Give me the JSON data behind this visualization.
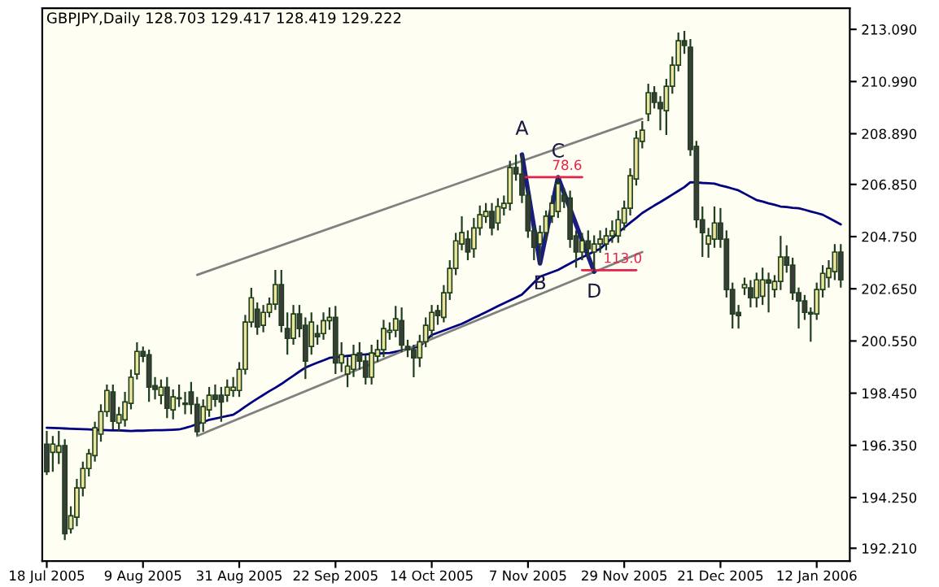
{
  "chart_data": {
    "type": "candlestick",
    "title": "GBPJPY,Daily 128.703 129.417 128.419 129.222",
    "categories": [
      "18 Jul 2005",
      null,
      null,
      null,
      null,
      null,
      null,
      null,
      null,
      null,
      null,
      null,
      null,
      null,
      null,
      null,
      "9 Aug 2005",
      null,
      null,
      null,
      null,
      null,
      null,
      null,
      null,
      null,
      null,
      null,
      null,
      null,
      null,
      null,
      "31 Aug 2005",
      null,
      null,
      null,
      null,
      null,
      null,
      null,
      null,
      null,
      null,
      null,
      null,
      null,
      null,
      null,
      "22 Sep 2005",
      null,
      null,
      null,
      null,
      null,
      null,
      null,
      null,
      null,
      null,
      null,
      null,
      null,
      null,
      null,
      "14 Oct 2005",
      null,
      null,
      null,
      null,
      null,
      null,
      null,
      null,
      null,
      null,
      null,
      null,
      null,
      null,
      null,
      "7 Nov 2005",
      null,
      null,
      null,
      null,
      null,
      null,
      null,
      null,
      null,
      null,
      null,
      null,
      null,
      null,
      null,
      "29 Nov 2005",
      null,
      null,
      null,
      null,
      null,
      null,
      null,
      null,
      null,
      null,
      null,
      null,
      null,
      null,
      null,
      "21 Dec 2005",
      null,
      null,
      null,
      null,
      null,
      null,
      null,
      null,
      null,
      null,
      null,
      null,
      null,
      null,
      null,
      "12 Jan 2006",
      null,
      null,
      null,
      null
    ],
    "ohlc": [
      [
        196.4,
        196.93,
        195.16,
        195.29
      ],
      [
        196.07,
        196.73,
        195.29,
        196.4
      ],
      [
        196.07,
        196.93,
        195.6,
        196.33
      ],
      [
        196.34,
        196.6,
        192.54,
        192.8
      ],
      [
        192.99,
        193.9,
        192.8,
        193.52
      ],
      [
        193.46,
        195.0,
        193.1,
        194.64
      ],
      [
        194.64,
        195.7,
        194.3,
        195.42
      ],
      [
        195.42,
        196.2,
        195.1,
        196.01
      ],
      [
        195.94,
        197.3,
        195.7,
        197.06
      ],
      [
        196.8,
        198.0,
        196.5,
        197.71
      ],
      [
        197.71,
        198.8,
        197.5,
        198.56
      ],
      [
        198.5,
        198.8,
        197.0,
        197.32
      ],
      [
        197.25,
        197.9,
        196.9,
        197.58
      ],
      [
        197.38,
        198.5,
        197.1,
        198.1
      ],
      [
        198.04,
        199.4,
        197.8,
        199.09
      ],
      [
        199.22,
        200.5,
        199.0,
        200.13
      ],
      [
        200.13,
        200.33,
        199.7,
        199.94
      ],
      [
        200.0,
        200.2,
        198.1,
        198.69
      ],
      [
        198.75,
        199.1,
        198.2,
        198.6
      ],
      [
        198.37,
        199.0,
        198.0,
        198.69
      ],
      [
        198.69,
        199.1,
        197.45,
        197.84
      ],
      [
        197.78,
        198.6,
        197.4,
        198.3
      ],
      [
        198.23,
        198.8,
        197.9,
        198.26
      ],
      [
        198.0,
        198.5,
        197.6,
        198.05
      ],
      [
        198.5,
        198.9,
        197.6,
        198.0
      ],
      [
        198.0,
        198.3,
        196.75,
        196.9
      ],
      [
        197.25,
        198.2,
        196.9,
        197.91
      ],
      [
        197.78,
        198.7,
        197.5,
        198.37
      ],
      [
        198.37,
        198.8,
        197.9,
        198.2
      ],
      [
        198.37,
        198.7,
        197.3,
        198.1
      ],
      [
        198.37,
        199.0,
        198.1,
        198.69
      ],
      [
        198.56,
        199.1,
        198.3,
        198.69
      ],
      [
        198.56,
        199.7,
        198.3,
        199.41
      ],
      [
        199.41,
        201.6,
        199.2,
        201.31
      ],
      [
        201.31,
        202.69,
        201.1,
        202.29
      ],
      [
        201.83,
        202.1,
        200.8,
        201.11
      ],
      [
        201.18,
        202.0,
        200.9,
        201.7
      ],
      [
        201.7,
        202.3,
        201.5,
        202.03
      ],
      [
        202.03,
        203.41,
        201.8,
        202.82
      ],
      [
        202.82,
        203.41,
        200.9,
        201.18
      ],
      [
        201.05,
        201.7,
        200.0,
        200.66
      ],
      [
        200.66,
        202.0,
        200.4,
        201.64
      ],
      [
        201.64,
        202.0,
        200.7,
        201.05
      ],
      [
        201.18,
        201.5,
        199.02,
        199.74
      ],
      [
        200.33,
        201.7,
        200.0,
        201.31
      ],
      [
        200.85,
        201.2,
        200.4,
        200.72
      ],
      [
        200.85,
        201.7,
        200.6,
        201.37
      ],
      [
        201.37,
        201.9,
        201.0,
        201.5
      ],
      [
        201.5,
        201.96,
        199.22,
        199.67
      ],
      [
        199.67,
        200.5,
        199.3,
        200.0
      ],
      [
        199.22,
        199.9,
        198.69,
        199.54
      ],
      [
        199.41,
        200.4,
        199.1,
        200.0
      ],
      [
        200.07,
        200.5,
        199.4,
        199.74
      ],
      [
        199.74,
        200.0,
        198.8,
        199.09
      ],
      [
        199.09,
        200.4,
        198.8,
        200.07
      ],
      [
        199.94,
        200.6,
        199.7,
        200.2
      ],
      [
        200.2,
        201.4,
        199.9,
        201.05
      ],
      [
        200.9,
        201.3,
        200.6,
        200.98
      ],
      [
        200.98,
        201.96,
        200.7,
        201.44
      ],
      [
        201.37,
        201.9,
        200.1,
        200.39
      ],
      [
        200.33,
        200.6,
        199.9,
        200.2
      ],
      [
        200.2,
        200.4,
        199.09,
        199.87
      ],
      [
        199.87,
        200.8,
        199.5,
        200.52
      ],
      [
        200.52,
        201.5,
        200.3,
        201.18
      ],
      [
        200.98,
        202.0,
        200.7,
        201.7
      ],
      [
        201.77,
        202.0,
        201.2,
        201.57
      ],
      [
        201.5,
        202.8,
        201.3,
        202.49
      ],
      [
        202.49,
        203.8,
        202.2,
        203.47
      ],
      [
        203.47,
        204.9,
        203.2,
        204.58
      ],
      [
        204.45,
        205.57,
        204.2,
        204.91
      ],
      [
        204.65,
        205.0,
        203.8,
        204.13
      ],
      [
        204.26,
        205.5,
        203.9,
        205.1
      ],
      [
        205.1,
        206.0,
        204.8,
        205.63
      ],
      [
        205.56,
        206.1,
        205.3,
        205.76
      ],
      [
        205.76,
        206.1,
        204.8,
        205.1
      ],
      [
        205.3,
        206.3,
        205.0,
        205.96
      ],
      [
        205.9,
        206.4,
        205.6,
        206.09
      ],
      [
        206.09,
        207.8,
        205.8,
        207.53
      ],
      [
        207.53,
        208.05,
        207.0,
        207.27
      ],
      [
        207.27,
        208.05,
        206.1,
        206.42
      ],
      [
        206.42,
        206.7,
        204.7,
        204.98
      ],
      [
        204.98,
        205.2,
        203.8,
        204.32
      ],
      [
        204.45,
        205.2,
        203.67,
        204.91
      ],
      [
        204.91,
        205.8,
        204.6,
        205.57
      ],
      [
        205.57,
        206.4,
        205.3,
        206.09
      ],
      [
        205.76,
        207.14,
        205.5,
        206.88
      ],
      [
        206.42,
        206.7,
        205.9,
        206.17
      ],
      [
        206.3,
        206.6,
        204.3,
        204.65
      ],
      [
        204.78,
        205.0,
        203.5,
        204.13
      ],
      [
        204.13,
        204.9,
        203.8,
        204.58
      ],
      [
        204.58,
        205.0,
        203.9,
        204.26
      ],
      [
        204.13,
        204.8,
        203.34,
        204.45
      ],
      [
        204.45,
        205.0,
        204.1,
        204.65
      ],
      [
        204.45,
        205.1,
        204.2,
        204.78
      ],
      [
        204.78,
        205.4,
        204.5,
        204.98
      ],
      [
        204.78,
        205.8,
        204.5,
        205.43
      ],
      [
        205.3,
        206.2,
        205.0,
        205.89
      ],
      [
        205.89,
        207.5,
        205.6,
        207.2
      ],
      [
        207.07,
        209.0,
        206.8,
        208.71
      ],
      [
        208.58,
        209.4,
        208.3,
        209.03
      ],
      [
        209.69,
        210.9,
        209.4,
        210.54
      ],
      [
        210.54,
        210.8,
        209.9,
        210.15
      ],
      [
        210.15,
        210.4,
        209.03,
        209.9
      ],
      [
        209.82,
        211.1,
        208.84,
        210.8
      ],
      [
        210.8,
        212.0,
        210.5,
        211.65
      ],
      [
        211.65,
        212.96,
        211.4,
        212.63
      ],
      [
        212.63,
        213.03,
        212.1,
        212.44
      ],
      [
        212.37,
        212.7,
        208.0,
        208.25
      ],
      [
        208.38,
        208.6,
        205.1,
        205.43
      ],
      [
        205.43,
        205.96,
        203.93,
        204.91
      ],
      [
        204.45,
        205.1,
        203.9,
        204.78
      ],
      [
        204.65,
        205.96,
        204.3,
        205.3
      ],
      [
        205.3,
        205.9,
        204.3,
        204.65
      ],
      [
        204.65,
        205.0,
        202.3,
        202.62
      ],
      [
        202.62,
        202.9,
        201.05,
        201.64
      ],
      [
        201.7,
        202.0,
        201.05,
        201.57
      ],
      [
        202.69,
        203.1,
        202.4,
        202.82
      ],
      [
        202.69,
        203.0,
        201.9,
        202.29
      ],
      [
        202.29,
        203.3,
        201.9,
        203.01
      ],
      [
        202.35,
        203.5,
        202.0,
        203.01
      ],
      [
        203.01,
        203.3,
        201.7,
        202.88
      ],
      [
        202.62,
        203.2,
        202.3,
        202.95
      ],
      [
        202.95,
        204.78,
        202.6,
        203.93
      ],
      [
        203.93,
        204.4,
        203.3,
        203.6
      ],
      [
        203.6,
        203.9,
        202.2,
        202.49
      ],
      [
        202.49,
        202.7,
        201.05,
        202.16
      ],
      [
        202.16,
        202.4,
        201.4,
        201.7
      ],
      [
        201.7,
        201.9,
        200.52,
        201.64
      ],
      [
        201.64,
        202.9,
        201.4,
        202.62
      ],
      [
        202.62,
        203.6,
        202.3,
        203.27
      ],
      [
        203.1,
        203.8,
        202.7,
        203.47
      ],
      [
        203.34,
        204.45,
        203.0,
        204.13
      ],
      [
        204.13,
        204.45,
        202.7,
        203.01
      ]
    ],
    "series": [
      {
        "type": "line",
        "color": "#000080",
        "values": [
          197.06,
          197.05,
          197.04,
          197.03,
          197.02,
          197.01,
          197.0,
          196.99,
          196.98,
          196.97,
          196.96,
          196.95,
          196.95,
          196.94,
          196.93,
          196.94,
          196.94,
          196.95,
          196.96,
          196.96,
          196.97,
          196.98,
          196.99,
          197.05,
          197.12,
          197.21,
          197.29,
          197.38,
          197.43,
          197.48,
          197.53,
          197.58,
          197.74,
          197.91,
          198.07,
          198.23,
          198.38,
          198.53,
          198.67,
          198.82,
          198.99,
          199.15,
          199.32,
          199.48,
          199.58,
          199.68,
          199.77,
          199.87,
          199.9,
          199.92,
          199.95,
          199.97,
          200.0,
          200.01,
          200.03,
          200.04,
          200.06,
          200.07,
          200.12,
          200.17,
          200.23,
          200.28,
          200.33,
          200.56,
          200.79,
          200.88,
          200.97,
          201.06,
          201.15,
          201.24,
          201.36,
          201.48,
          201.59,
          201.71,
          201.83,
          201.95,
          202.07,
          202.18,
          202.3,
          202.42,
          202.66,
          202.9,
          203.14,
          203.23,
          203.32,
          203.41,
          203.54,
          203.67,
          203.8,
          203.92,
          204.03,
          204.15,
          204.26,
          204.48,
          204.69,
          204.91,
          205.11,
          205.31,
          205.5,
          205.7,
          205.85,
          206.0,
          206.14,
          206.29,
          206.44,
          206.59,
          206.74,
          206.94,
          206.93,
          206.91,
          206.9,
          206.88,
          206.81,
          206.75,
          206.68,
          206.61,
          206.48,
          206.35,
          206.22,
          206.16,
          206.09,
          206.03,
          205.96,
          205.94,
          205.91,
          205.89,
          205.83,
          205.76,
          205.7,
          205.63,
          205.5,
          205.37,
          205.24
        ]
      },
      {
        "type": "line",
        "color": "#808080",
        "values": [
          null,
          null,
          null,
          null,
          null,
          null,
          null,
          null,
          null,
          null,
          null,
          null,
          null,
          null,
          null,
          null,
          null,
          null,
          null,
          null,
          null,
          null,
          null,
          null,
          null,
          203.21,
          null,
          null,
          null,
          null,
          null,
          null,
          null,
          null,
          null,
          null,
          null,
          null,
          null,
          null,
          null,
          null,
          null,
          null,
          null,
          null,
          null,
          null,
          null,
          null,
          null,
          null,
          null,
          null,
          null,
          null,
          null,
          null,
          null,
          null,
          null,
          null,
          null,
          null,
          null,
          null,
          null,
          null,
          null,
          null,
          null,
          null,
          null,
          null,
          null,
          null,
          null,
          null,
          null,
          null,
          null,
          null,
          null,
          null,
          null,
          null,
          null,
          null,
          null,
          null,
          null,
          null,
          null,
          null,
          null,
          null,
          null,
          null,
          null,
          209.49,
          null,
          null,
          null,
          null,
          null,
          null,
          null,
          null,
          null,
          null,
          null,
          null,
          null,
          null,
          null,
          null,
          null,
          null,
          null,
          null,
          null,
          null,
          null,
          null,
          null,
          null,
          null,
          null,
          null,
          null,
          null,
          null,
          null
        ]
      },
      {
        "type": "line",
        "color": "#808080",
        "values": [
          null,
          null,
          null,
          null,
          null,
          null,
          null,
          null,
          null,
          null,
          null,
          null,
          null,
          null,
          null,
          null,
          null,
          null,
          null,
          null,
          null,
          null,
          null,
          null,
          null,
          196.73,
          null,
          null,
          null,
          null,
          null,
          null,
          null,
          null,
          null,
          null,
          null,
          null,
          null,
          null,
          null,
          null,
          null,
          null,
          null,
          null,
          null,
          null,
          null,
          null,
          null,
          null,
          null,
          null,
          null,
          null,
          null,
          null,
          null,
          null,
          null,
          null,
          null,
          null,
          null,
          null,
          null,
          null,
          null,
          null,
          null,
          null,
          null,
          null,
          null,
          null,
          null,
          null,
          null,
          null,
          null,
          null,
          null,
          null,
          null,
          null,
          null,
          null,
          null,
          null,
          null,
          null,
          null,
          null,
          null,
          null,
          null,
          null,
          null,
          204.13,
          null,
          null,
          null,
          null,
          null,
          null,
          null,
          null,
          null,
          null,
          null,
          null,
          null,
          null,
          null,
          null,
          null,
          null,
          null,
          null,
          null,
          null,
          null,
          null,
          null,
          null,
          null,
          null,
          null,
          null,
          null,
          null,
          null
        ]
      },
      {
        "type": "line",
        "color": "#1c1c80",
        "values": [
          null,
          null,
          null,
          null,
          null,
          null,
          null,
          null,
          null,
          null,
          null,
          null,
          null,
          null,
          null,
          null,
          null,
          null,
          null,
          null,
          null,
          null,
          null,
          null,
          null,
          null,
          null,
          null,
          null,
          null,
          null,
          null,
          null,
          null,
          null,
          null,
          null,
          null,
          null,
          null,
          null,
          null,
          null,
          null,
          null,
          null,
          null,
          null,
          null,
          null,
          null,
          null,
          null,
          null,
          null,
          null,
          null,
          null,
          null,
          null,
          null,
          null,
          null,
          null,
          null,
          null,
          null,
          null,
          null,
          null,
          null,
          null,
          null,
          null,
          null,
          null,
          null,
          null,
          null,
          208.05,
          null,
          null,
          203.67,
          null,
          null,
          207.14,
          null,
          null,
          null,
          null,
          null,
          203.34,
          null,
          null,
          null,
          null,
          null,
          null,
          null,
          null,
          null,
          null,
          null,
          null,
          null,
          null,
          null,
          null,
          null,
          null,
          null,
          null,
          null,
          null,
          null,
          null,
          null,
          null,
          null,
          null,
          null,
          null,
          null,
          null,
          null,
          null,
          null,
          null,
          null,
          null,
          null,
          null,
          null
        ],
        "value_labels": [
          null,
          null,
          null,
          null,
          null,
          null,
          null,
          null,
          null,
          null,
          null,
          null,
          null,
          null,
          null,
          null,
          null,
          null,
          null,
          null,
          null,
          null,
          null,
          null,
          null,
          null,
          null,
          null,
          null,
          null,
          null,
          null,
          null,
          null,
          null,
          null,
          null,
          null,
          null,
          null,
          null,
          null,
          null,
          null,
          null,
          null,
          null,
          null,
          null,
          null,
          null,
          null,
          null,
          null,
          null,
          null,
          null,
          null,
          null,
          null,
          null,
          null,
          null,
          null,
          null,
          null,
          null,
          null,
          null,
          null,
          null,
          null,
          null,
          null,
          null,
          null,
          null,
          null,
          null,
          "A",
          null,
          null,
          "B",
          null,
          null,
          "C",
          null,
          null,
          null,
          null,
          null,
          "D",
          null,
          null,
          null,
          null,
          null,
          null,
          null,
          null,
          null,
          null,
          null,
          null,
          null,
          null,
          null,
          null,
          null,
          null,
          null,
          null,
          null,
          null,
          null,
          null,
          null,
          null,
          null,
          null,
          null,
          null,
          null,
          null,
          null,
          null,
          null,
          null,
          null,
          null,
          null,
          null,
          null
        ]
      },
      {
        "type": "line",
        "color": "#e8204a",
        "values": [
          null,
          null,
          null,
          null,
          null,
          null,
          null,
          null,
          null,
          null,
          null,
          null,
          null,
          null,
          null,
          null,
          null,
          null,
          null,
          null,
          null,
          null,
          null,
          null,
          null,
          null,
          null,
          null,
          null,
          null,
          null,
          null,
          null,
          null,
          null,
          null,
          null,
          null,
          null,
          null,
          null,
          null,
          null,
          null,
          null,
          null,
          null,
          null,
          null,
          null,
          null,
          null,
          null,
          null,
          null,
          null,
          null,
          null,
          null,
          null,
          null,
          null,
          null,
          null,
          null,
          null,
          null,
          null,
          null,
          null,
          null,
          null,
          null,
          null,
          null,
          null,
          null,
          null,
          null,
          207.14,
          207.14,
          207.14,
          207.14,
          207.14,
          207.14,
          207.14,
          207.14,
          207.14,
          207.14,
          207.14,
          null,
          null,
          null,
          null,
          null,
          null,
          null,
          null,
          null,
          null,
          null,
          null,
          null,
          null,
          null,
          null,
          null,
          null,
          null,
          null,
          null,
          null,
          null,
          null,
          null,
          null,
          null,
          null,
          null,
          null,
          null,
          null,
          null,
          null,
          null,
          null,
          null,
          null,
          null,
          null,
          null,
          null,
          null
        ]
      },
      {
        "type": "line",
        "color": "#e8204a",
        "values": [
          null,
          null,
          null,
          null,
          null,
          null,
          null,
          null,
          null,
          null,
          null,
          null,
          null,
          null,
          null,
          null,
          null,
          null,
          null,
          null,
          null,
          null,
          null,
          null,
          null,
          null,
          null,
          null,
          null,
          null,
          null,
          null,
          null,
          null,
          null,
          null,
          null,
          null,
          null,
          null,
          null,
          null,
          null,
          null,
          null,
          null,
          null,
          null,
          null,
          null,
          null,
          null,
          null,
          null,
          null,
          null,
          null,
          null,
          null,
          null,
          null,
          null,
          null,
          null,
          null,
          null,
          null,
          null,
          null,
          null,
          null,
          null,
          null,
          null,
          null,
          null,
          null,
          null,
          null,
          null,
          null,
          null,
          null,
          null,
          null,
          null,
          null,
          null,
          null,
          203.4,
          203.4,
          203.4,
          203.4,
          203.4,
          203.4,
          203.4,
          203.4,
          203.4,
          203.4,
          null,
          null,
          null,
          null,
          null,
          null,
          null,
          null,
          null,
          null,
          null,
          null,
          null,
          null,
          null,
          null,
          null,
          null,
          null,
          null,
          null,
          null,
          null,
          null,
          null,
          null,
          null,
          null,
          null,
          null,
          null,
          null,
          null,
          null
        ]
      }
    ],
    "annotations": [
      {
        "text": "78.6",
        "y": 207.14
      },
      {
        "text": "113.0",
        "y": 203.4
      }
    ],
    "ylim": [
      191.69,
      213.94
    ],
    "yticks": [
      {
        "value": 213.09,
        "label": "213.090"
      },
      {
        "value": 210.99,
        "label": "210.990"
      },
      {
        "value": 208.89,
        "label": "208.890"
      },
      {
        "value": 206.85,
        "label": "206.850"
      },
      {
        "value": 204.75,
        "label": "204.750"
      },
      {
        "value": 202.65,
        "label": "202.650"
      },
      {
        "value": 200.55,
        "label": "200.550"
      },
      {
        "value": 198.45,
        "label": "198.450"
      },
      {
        "value": 196.35,
        "label": "196.350"
      },
      {
        "value": 194.25,
        "label": "194.250"
      },
      {
        "value": 192.21,
        "label": "192.210"
      }
    ]
  }
}
